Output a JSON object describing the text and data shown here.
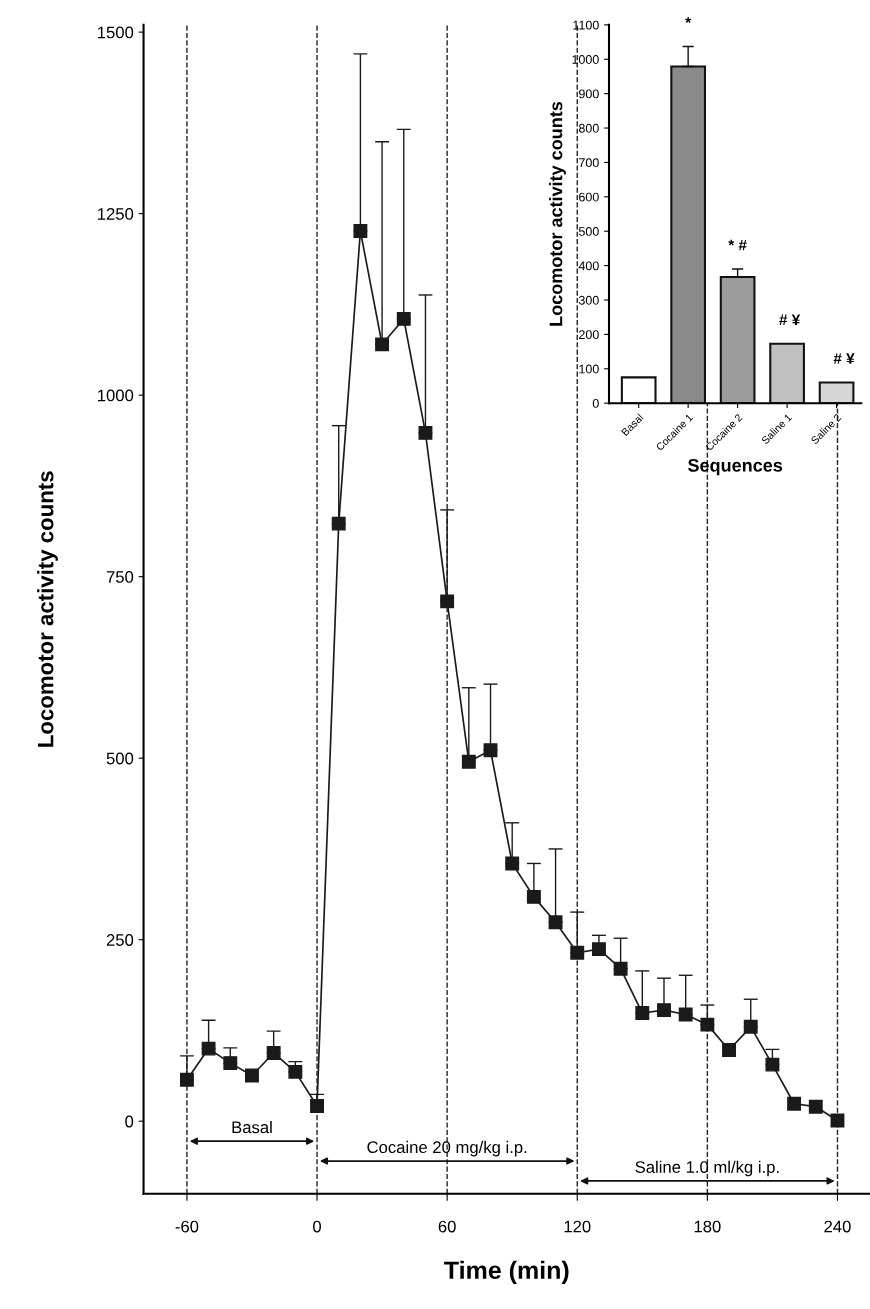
{
  "chart_data": [
    {
      "type": "line",
      "xlabel": "Time (min)",
      "ylabel": "Locomotor activity counts",
      "x": [
        -60,
        -50,
        -40,
        -30,
        -20,
        -10,
        0,
        10,
        20,
        30,
        40,
        50,
        60,
        70,
        80,
        90,
        100,
        110,
        120,
        130,
        140,
        150,
        160,
        170,
        180,
        190,
        200,
        210,
        220,
        230,
        240
      ],
      "series": [
        {
          "color": "#1a1a1a",
          "values": [
            57,
            100,
            80,
            63,
            94,
            68,
            21,
            823,
            1226,
            1070,
            1105,
            948,
            716,
            495,
            511,
            355,
            309,
            274,
            232,
            237,
            210,
            149,
            153,
            147,
            133,
            98,
            130,
            78,
            24,
            20,
            1
          ],
          "errors": [
            [
              57,
              90
            ],
            [
              100,
              139
            ],
            [
              80,
              101
            ],
            null,
            [
              94,
              124
            ],
            [
              68,
              82
            ],
            [
              21,
              37
            ],
            [
              823,
              958
            ],
            [
              1226,
              1470
            ],
            [
              1070,
              1349
            ],
            [
              1105,
              1366
            ],
            [
              948,
              1138
            ],
            [
              716,
              842
            ],
            [
              495,
              597
            ],
            [
              511,
              602
            ],
            [
              355,
              411
            ],
            [
              309,
              355
            ],
            [
              274,
              375
            ],
            [
              232,
              288
            ],
            [
              237,
              256
            ],
            [
              210,
              252
            ],
            [
              149,
              207
            ],
            [
              153,
              197
            ],
            [
              147,
              201
            ],
            [
              133,
              160
            ],
            null,
            [
              130,
              168
            ],
            [
              78,
              99
            ],
            null,
            null,
            null
          ]
        }
      ],
      "marker": "square",
      "line_style": "solid",
      "xlim": [
        -80,
        255
      ],
      "ylim": [
        -100,
        1510
      ],
      "xticks": [
        -60,
        0,
        60,
        120,
        180,
        240
      ],
      "yticks": [
        0,
        250,
        500,
        750,
        1000,
        1250,
        1500
      ],
      "ref_lines": [
        {
          "axis": "x",
          "value": -60,
          "line_style": "dashed"
        },
        {
          "axis": "x",
          "value": 0,
          "line_style": "dashed"
        },
        {
          "axis": "x",
          "value": 60,
          "line_style": "dashed"
        },
        {
          "axis": "x",
          "value": 120,
          "line_style": "dashed"
        },
        {
          "axis": "x",
          "value": 180,
          "line_style": "dashed"
        },
        {
          "axis": "x",
          "value": 240,
          "line_style": "dashed"
        }
      ],
      "annotations": [
        "Basal",
        "Cocaine 20 mg/kg i.p.",
        "Saline 1.0 ml/kg i.p."
      ],
      "grid": false
    },
    {
      "type": "bar",
      "xlabel": "Sequences",
      "ylabel": "Locomotor activity counts",
      "categories": [
        "Basal",
        "Cocaine 1",
        "Cocaine 2",
        "Saline 1",
        "Saline 2"
      ],
      "values": [
        75,
        979,
        367,
        173,
        60
      ],
      "colors": [
        "#ffffff",
        "#8a8a8a",
        "#9c9c9c",
        "#c0c0c0",
        "#d6d6d6"
      ],
      "errors": [
        null,
        [
          979,
          1037
        ],
        [
          367,
          390
        ],
        null,
        null
      ],
      "ylim": [
        0,
        1100
      ],
      "yticks": [
        0,
        100,
        200,
        300,
        400,
        500,
        600,
        700,
        800,
        900,
        1000,
        1100
      ],
      "annotations": [
        "*",
        "* #",
        "# ¥",
        "# ¥"
      ],
      "grid": false
    }
  ]
}
